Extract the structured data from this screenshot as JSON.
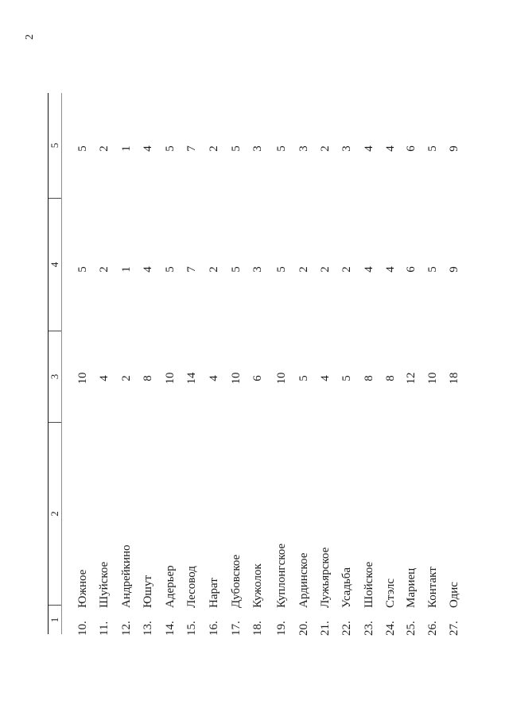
{
  "page": {
    "number": "2"
  },
  "table": {
    "column_labels": [
      "1",
      "2",
      "3",
      "4",
      "5"
    ],
    "rows": [
      {
        "n": "10.",
        "name": "Южное",
        "c3": "10",
        "c4": "5",
        "c5": "5"
      },
      {
        "n": "11.",
        "name": "Шуйское",
        "c3": "4",
        "c4": "2",
        "c5": "2"
      },
      {
        "n": "12.",
        "name": "Андрейкино",
        "c3": "2",
        "c4": "1",
        "c5": "1"
      },
      {
        "n": "13.",
        "name": "Юшут",
        "c3": "8",
        "c4": "4",
        "c5": "4"
      },
      {
        "n": "14.",
        "name": "Адерьер",
        "c3": "10",
        "c4": "5",
        "c5": "5"
      },
      {
        "n": "15.",
        "name": "Лесовод",
        "c3": "14",
        "c4": "7",
        "c5": "7"
      },
      {
        "n": "16.",
        "name": "Нарат",
        "c3": "4",
        "c4": "2",
        "c5": "2"
      },
      {
        "n": "17.",
        "name": "Дубовское",
        "c3": "10",
        "c4": "5",
        "c5": "5"
      },
      {
        "n": "18.",
        "name": "Кужолок",
        "c3": "6",
        "c4": "3",
        "c5": "3"
      },
      {
        "n": "19.",
        "name": "Куплонгское",
        "c3": "10",
        "c4": "5",
        "c5": "5"
      },
      {
        "n": "20.",
        "name": "Ардинское",
        "c3": "5",
        "c4": "2",
        "c5": "3"
      },
      {
        "n": "21.",
        "name": "Лужьярское",
        "c3": "4",
        "c4": "2",
        "c5": "2"
      },
      {
        "n": "22.",
        "name": "Усадьба",
        "c3": "5",
        "c4": "2",
        "c5": "3"
      },
      {
        "n": "23.",
        "name": "Шойское",
        "c3": "8",
        "c4": "4",
        "c5": "4"
      },
      {
        "n": "24.",
        "name": "Стэлс",
        "c3": "8",
        "c4": "4",
        "c5": "4"
      },
      {
        "n": "25.",
        "name": "Мариец",
        "c3": "12",
        "c4": "6",
        "c5": "6"
      },
      {
        "n": "26.",
        "name": "Контакт",
        "c3": "10",
        "c4": "5",
        "c5": "5"
      },
      {
        "n": "27.",
        "name": "Одис",
        "c3": "18",
        "c4": "9",
        "c5": "9"
      }
    ]
  }
}
